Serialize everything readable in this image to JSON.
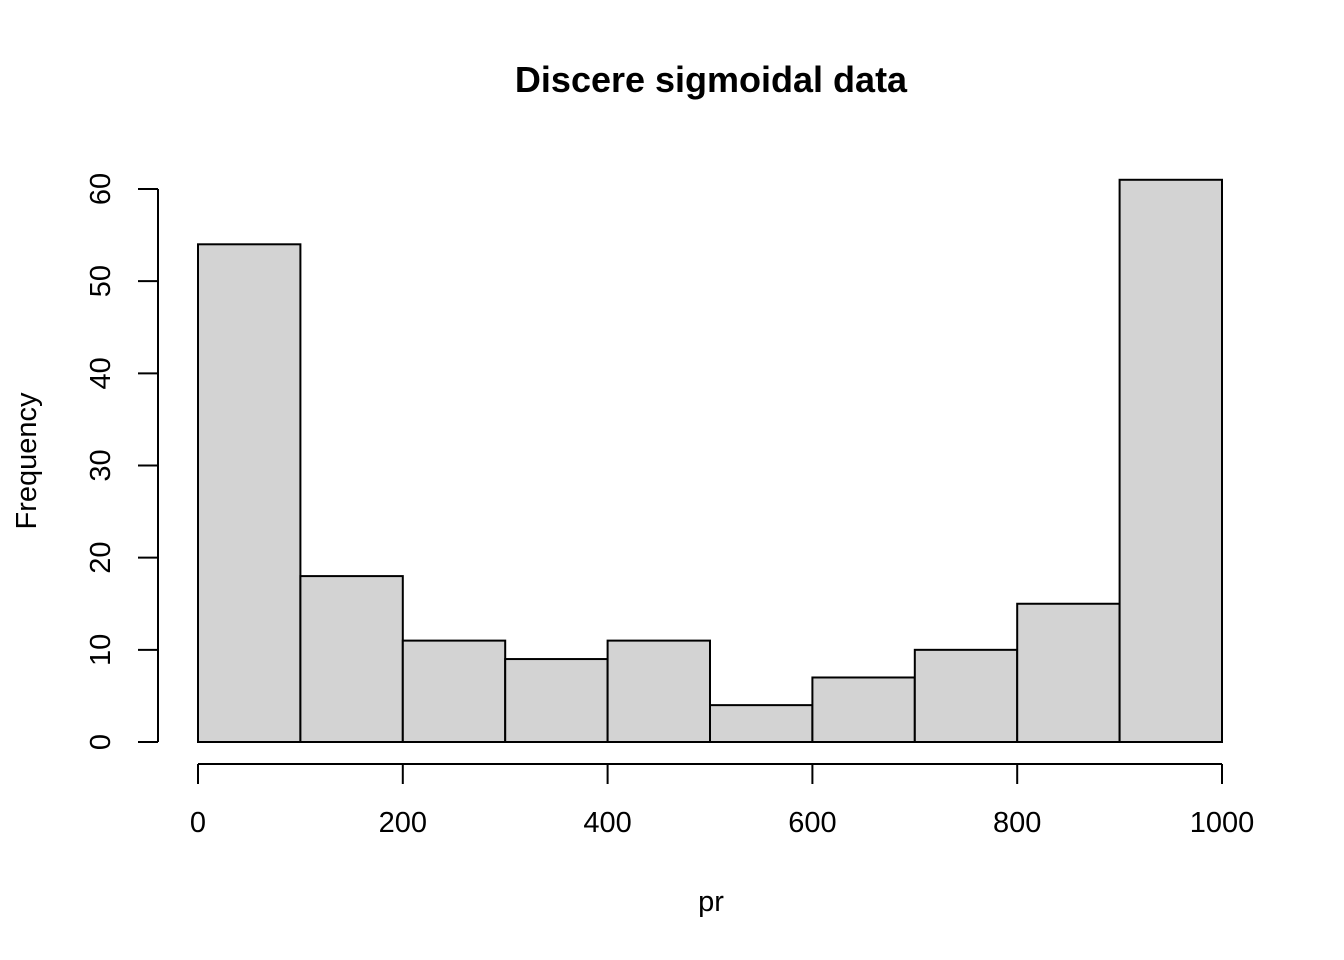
{
  "chart_data": {
    "type": "bar",
    "title": "Discere sigmoidal data",
    "xlabel": "pr",
    "ylabel": "Frequency",
    "bins": [
      {
        "from": 0,
        "to": 100,
        "count": 54
      },
      {
        "from": 100,
        "to": 200,
        "count": 18
      },
      {
        "from": 200,
        "to": 300,
        "count": 11
      },
      {
        "from": 300,
        "to": 400,
        "count": 9
      },
      {
        "from": 400,
        "to": 500,
        "count": 11
      },
      {
        "from": 500,
        "to": 600,
        "count": 4
      },
      {
        "from": 600,
        "to": 700,
        "count": 7
      },
      {
        "from": 700,
        "to": 800,
        "count": 10
      },
      {
        "from": 800,
        "to": 900,
        "count": 15
      },
      {
        "from": 900,
        "to": 1000,
        "count": 61
      }
    ],
    "xlim": [
      0,
      1000
    ],
    "ylim": [
      0,
      60
    ],
    "x_ticks": [
      0,
      200,
      400,
      600,
      800,
      1000
    ],
    "y_ticks": [
      0,
      10,
      20,
      30,
      40,
      50,
      60
    ],
    "grid": false,
    "colors": {
      "bar_fill": "#d3d3d3",
      "bar_stroke": "#000000"
    }
  }
}
